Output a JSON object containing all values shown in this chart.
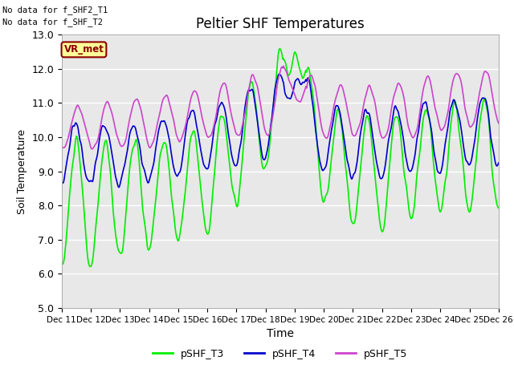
{
  "title": "Peltier SHF Temperatures",
  "xlabel": "Time",
  "ylabel": "Soil Temperature",
  "ylim": [
    5.0,
    13.0
  ],
  "yticks": [
    5.0,
    6.0,
    7.0,
    8.0,
    9.0,
    10.0,
    11.0,
    12.0,
    13.0
  ],
  "xtick_labels": [
    "Dec 11",
    "Dec 12",
    "Dec 13",
    "Dec 14",
    "Dec 15",
    "Dec 16",
    "Dec 17",
    "Dec 18",
    "Dec 19",
    "Dec 20",
    "Dec 21",
    "Dec 22",
    "Dec 23",
    "Dec 24",
    "Dec 25",
    "Dec 26"
  ],
  "no_data_text_1": "No data for f_SHF2_T1",
  "no_data_text_2": "No data for f_SHF_T2",
  "vr_met_label": "VR_met",
  "color_T3": "#00ee00",
  "color_T4": "#0000cc",
  "color_T5": "#cc44cc",
  "legend_labels": [
    "pSHF_T3",
    "pSHF_T4",
    "pSHF_T5"
  ],
  "background_color": "#e8e8e8",
  "figure_bg": "#ffffff",
  "linewidth": 1.2,
  "n_days": 15,
  "pts_per_day": 48
}
